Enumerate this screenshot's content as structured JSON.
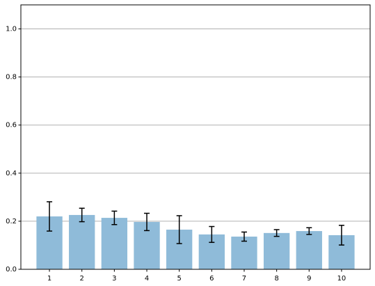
{
  "chart_data": {
    "type": "bar",
    "x": [
      1,
      2,
      3,
      4,
      5,
      6,
      7,
      8,
      9,
      10
    ],
    "values": [
      0.22,
      0.226,
      0.214,
      0.197,
      0.165,
      0.145,
      0.136,
      0.151,
      0.159,
      0.142
    ],
    "errors": [
      0.061,
      0.028,
      0.028,
      0.036,
      0.058,
      0.033,
      0.019,
      0.014,
      0.014,
      0.041
    ],
    "color": "#8fbbd9",
    "error_color": "#000000",
    "xlim": [
      0.12,
      10.88
    ],
    "xticks": [
      1,
      2,
      3,
      4,
      5,
      6,
      7,
      8,
      9,
      10
    ],
    "ylim": [
      0,
      1.1
    ],
    "yticks": [
      {
        "value": 0,
        "label": "0.0"
      },
      {
        "value": 0.2,
        "label": "0.2"
      },
      {
        "value": 0.4,
        "label": "0.4"
      },
      {
        "value": 0.6,
        "label": "0.6"
      },
      {
        "value": 0.8,
        "label": "0.8"
      },
      {
        "value": 1.0,
        "label": "1.0"
      }
    ],
    "grid": true
  }
}
